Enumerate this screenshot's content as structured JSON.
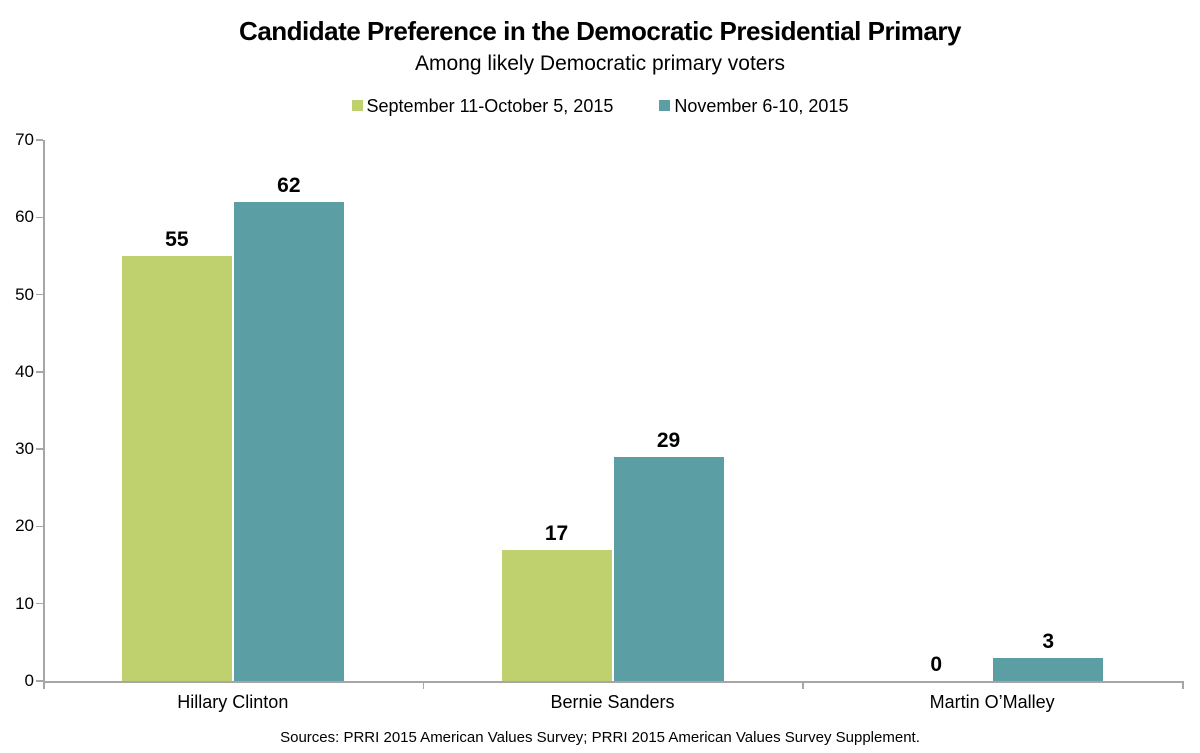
{
  "title": "Candidate Preference in the Democratic Presidential Primary",
  "subtitle": "Among likely Democratic primary voters",
  "source": "Sources: PRRI 2015 American Values Survey; PRRI 2015 American Values Survey Supplement.",
  "colors": {
    "series1": "#bed16e",
    "series2": "#5b9fa5",
    "axis": "#a6a6a6",
    "text": "#000000"
  },
  "chart_data": {
    "type": "bar",
    "categories": [
      "Hillary Clinton",
      "Bernie Sanders",
      "Martin O’Malley"
    ],
    "series": [
      {
        "name": "September 11-October 5, 2015",
        "color": "#bed16e",
        "values": [
          55,
          17,
          0
        ]
      },
      {
        "name": "November 6-10, 2015",
        "color": "#5b9fa5",
        "values": [
          62,
          29,
          3
        ]
      }
    ],
    "title": "Candidate Preference in the Democratic Presidential Primary",
    "subtitle": "Among likely Democratic primary voters",
    "xlabel": "",
    "ylabel": "",
    "ylim": [
      0,
      70
    ],
    "yticks": [
      0,
      10,
      20,
      30,
      40,
      50,
      60,
      70
    ],
    "grid": false,
    "legend_position": "top",
    "value_labels": true
  }
}
